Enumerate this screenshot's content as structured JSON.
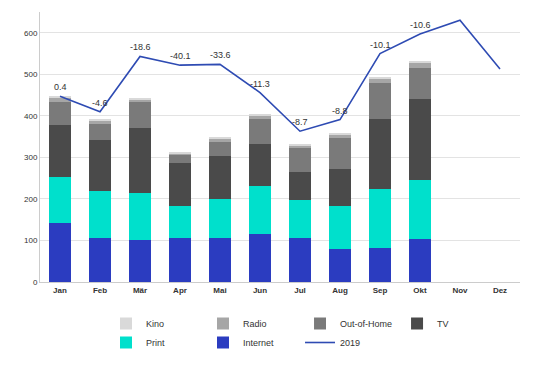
{
  "chart_data": {
    "type": "bar",
    "stacked": true,
    "grid": true,
    "legend": "bottom",
    "categories": [
      "Jan",
      "Feb",
      "Mär",
      "Apr",
      "Mai",
      "Jun",
      "Jul",
      "Aug",
      "Sep",
      "Okt",
      "Nov",
      "Dez"
    ],
    "ylim": [
      0,
      650
    ],
    "yticks": [
      0,
      100,
      200,
      300,
      400,
      500,
      600
    ],
    "series": [
      {
        "name": "Kino",
        "color": "#d9d9d9",
        "values": [
          4,
          3,
          3,
          2,
          3,
          4,
          3,
          3,
          4,
          5,
          null,
          null
        ]
      },
      {
        "name": "Radio",
        "color": "#a6a6a6",
        "values": [
          10,
          8,
          7,
          5,
          8,
          8,
          7,
          7,
          12,
          12,
          null,
          null
        ]
      },
      {
        "name": "Out-of-Home",
        "color": "#7a7a7a",
        "values": [
          56,
          37,
          63,
          18,
          34,
          61,
          57,
          74,
          86,
          76,
          null,
          null
        ]
      },
      {
        "name": "TV",
        "color": "#4a4a4a",
        "values": [
          124,
          124,
          155,
          103,
          102,
          100,
          68,
          90,
          168,
          195,
          null,
          null
        ]
      },
      {
        "name": "Print",
        "color": "#00e0cc",
        "values": [
          110,
          112,
          115,
          79,
          96,
          116,
          90,
          104,
          141,
          141,
          null,
          null
        ]
      },
      {
        "name": "Internet",
        "color": "#2b3cc0",
        "values": [
          143,
          107,
          100,
          105,
          105,
          116,
          107,
          79,
          83,
          104,
          null,
          null
        ]
      },
      {
        "name": "2019",
        "type": "line",
        "color": "#2e4bb3",
        "line_style": "solid",
        "values": [
          447,
          410,
          543,
          522,
          524,
          456,
          363,
          391,
          550,
          597,
          630,
          513
        ],
        "changes": [
          0.4,
          -4.6,
          -18.6,
          -40.1,
          -33.6,
          -11.3,
          -8.7,
          -8.8,
          -10.1,
          -10.6,
          null,
          null
        ]
      }
    ]
  }
}
